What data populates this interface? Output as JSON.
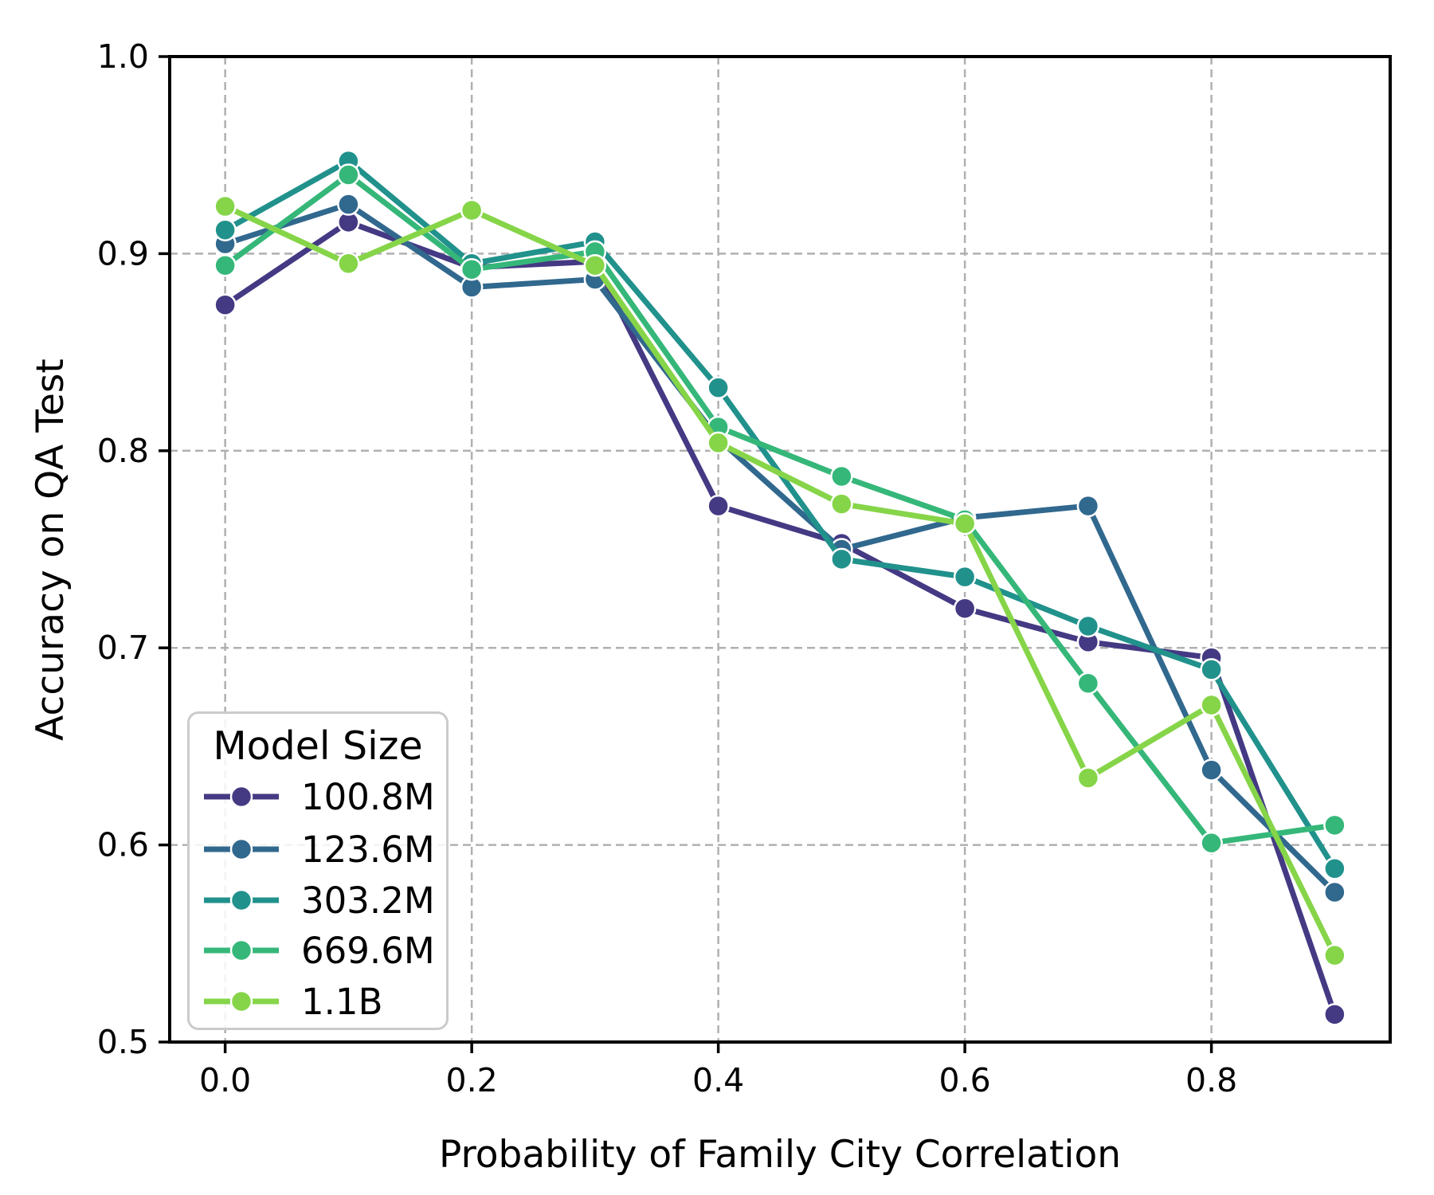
{
  "chart_data": {
    "type": "line",
    "title": "",
    "xlabel": "Probability of Family City Correlation",
    "ylabel": "Accuracy on QA Test",
    "x": [
      0.0,
      0.1,
      0.2,
      0.3,
      0.4,
      0.5,
      0.6,
      0.7,
      0.8,
      0.9
    ],
    "xlim": [
      -0.045,
      0.945
    ],
    "ylim": [
      0.5,
      1.0
    ],
    "xticks": [
      0.0,
      0.2,
      0.4,
      0.6,
      0.8
    ],
    "yticks": [
      0.5,
      0.6,
      0.7,
      0.8,
      0.9,
      1.0
    ],
    "grid": true,
    "grid_color": "#b0b0b0",
    "axis_color": "#000000",
    "legend": {
      "title": "Model Size",
      "position": "lower left"
    },
    "series": [
      {
        "name": "100.8M",
        "color": "#443983",
        "values": [
          0.874,
          0.916,
          0.893,
          0.896,
          0.772,
          0.753,
          0.72,
          0.703,
          0.695,
          0.514
        ]
      },
      {
        "name": "123.6M",
        "color": "#31688e",
        "values": [
          0.905,
          0.925,
          0.883,
          0.887,
          0.806,
          0.75,
          0.766,
          0.772,
          0.638,
          0.576
        ]
      },
      {
        "name": "303.2M",
        "color": "#21918c",
        "values": [
          0.912,
          0.947,
          0.895,
          0.906,
          0.832,
          0.745,
          0.736,
          0.711,
          0.689,
          0.588
        ]
      },
      {
        "name": "669.6M",
        "color": "#35b779",
        "values": [
          0.894,
          0.94,
          0.892,
          0.901,
          0.812,
          0.787,
          0.765,
          0.682,
          0.601,
          0.61
        ]
      },
      {
        "name": "1.1B",
        "color": "#86d549",
        "values": [
          0.924,
          0.895,
          0.922,
          0.894,
          0.804,
          0.773,
          0.763,
          0.634,
          0.671,
          0.544
        ]
      }
    ]
  }
}
